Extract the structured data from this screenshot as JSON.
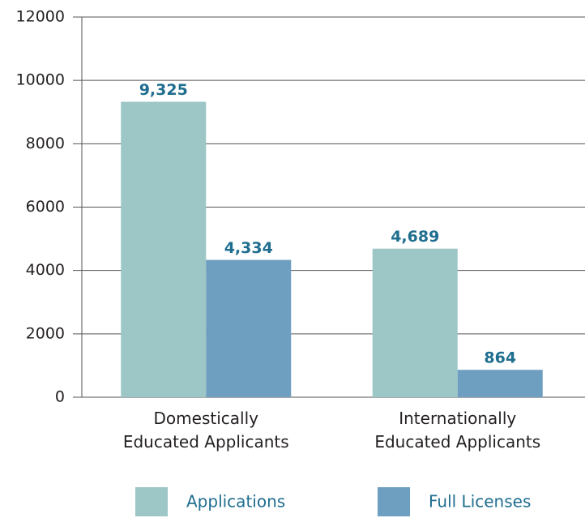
{
  "chart_data": {
    "type": "bar",
    "categories": [
      "Domestically\nEducated Applicants",
      "Internationally\nEducated Applicants"
    ],
    "series": [
      {
        "name": "Applications",
        "color": "#9dc6c7",
        "values": [
          9325,
          4689
        ],
        "value_labels": [
          "9,325",
          "4,689"
        ]
      },
      {
        "name": "Full Licenses",
        "color": "#6f9fc0",
        "values": [
          4334,
          864
        ],
        "value_labels": [
          "4,334",
          "864"
        ]
      }
    ],
    "ylim": [
      0,
      12000
    ],
    "yticks": [
      0,
      2000,
      4000,
      6000,
      8000,
      10000,
      12000
    ],
    "grid": true,
    "value_label_color": "#1f6e8f",
    "legend": "bottom"
  }
}
